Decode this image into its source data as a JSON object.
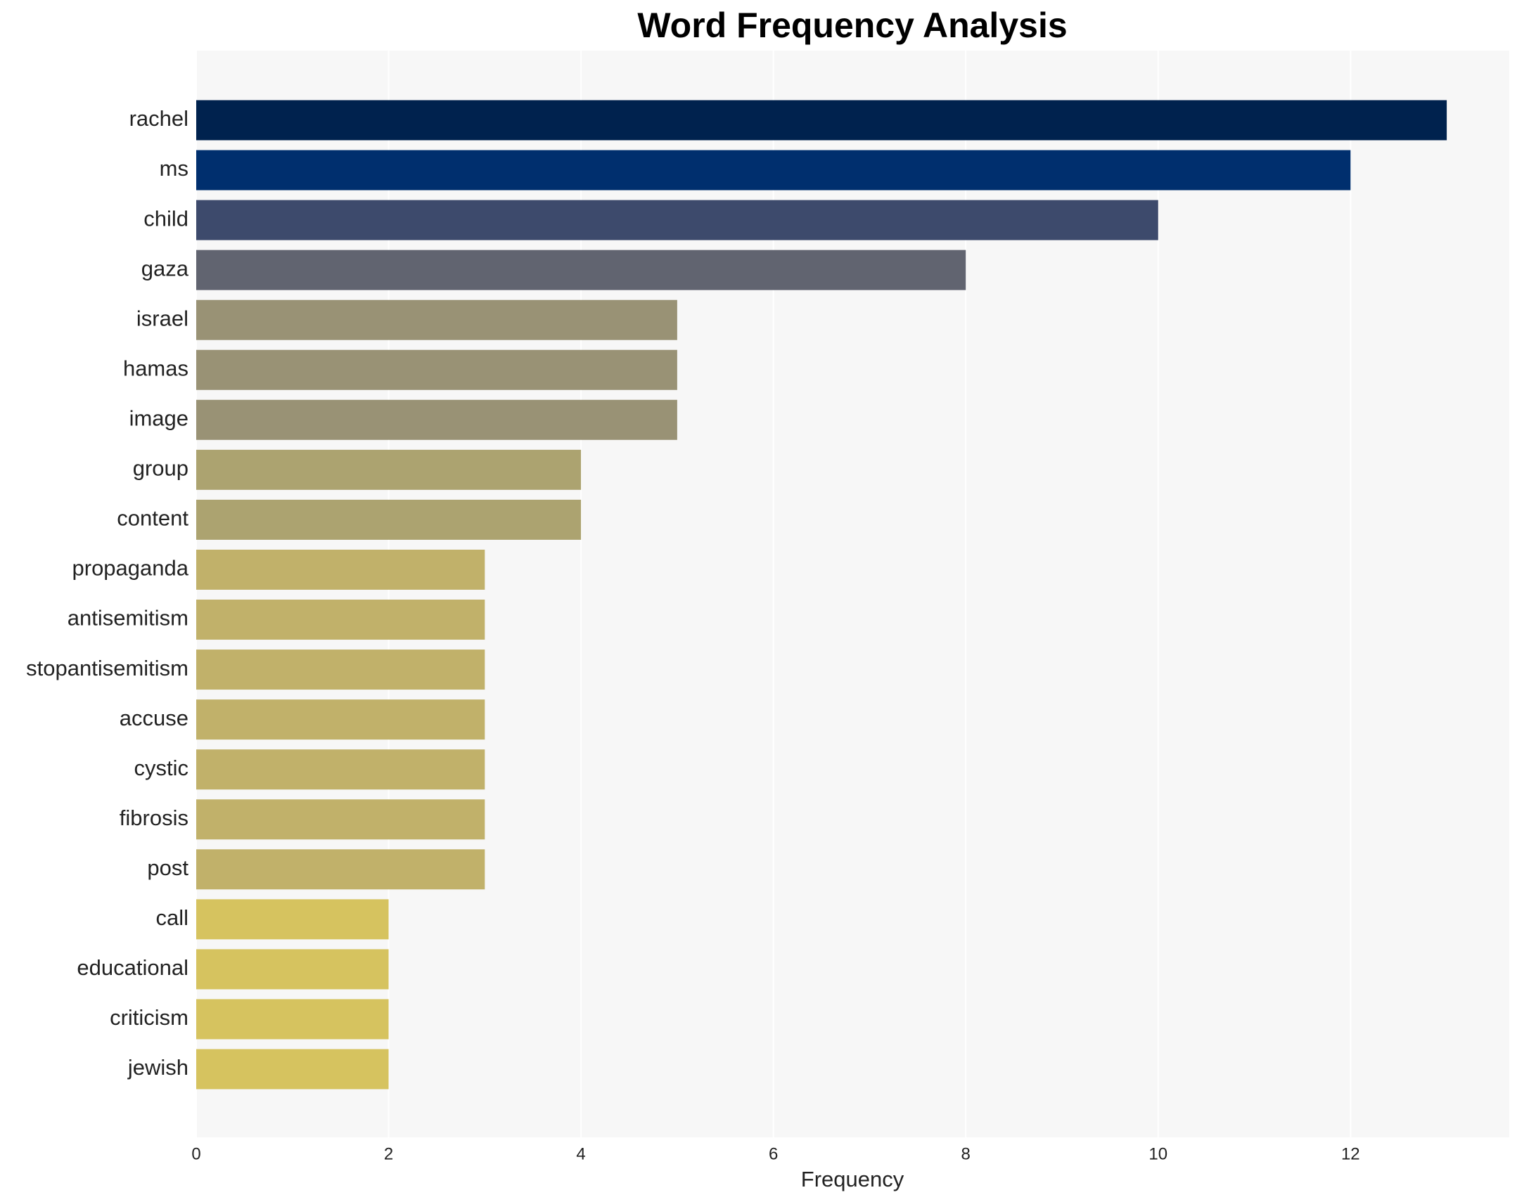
{
  "chart_data": {
    "type": "bar",
    "orientation": "horizontal",
    "title": "Word Frequency Analysis",
    "x_label": "Frequency",
    "categories": [
      "rachel",
      "ms",
      "child",
      "gaza",
      "israel",
      "hamas",
      "image",
      "group",
      "content",
      "propaganda",
      "antisemitism",
      "stopantisemitism",
      "accuse",
      "cystic",
      "fibrosis",
      "post",
      "call",
      "educational",
      "criticism",
      "jewish"
    ],
    "values": [
      13,
      12,
      10,
      8,
      5,
      5,
      5,
      4,
      4,
      3,
      3,
      3,
      3,
      3,
      3,
      3,
      2,
      2,
      2,
      2
    ],
    "colors": [
      "#00224e",
      "#002f6e",
      "#3d4a6c",
      "#616470",
      "#999275",
      "#999275",
      "#999275",
      "#aca370",
      "#aca370",
      "#c1b16a",
      "#c1b16a",
      "#c1b16a",
      "#c1b16a",
      "#c1b16a",
      "#c1b16a",
      "#c1b16a",
      "#d6c35f",
      "#d6c35f",
      "#d6c35f",
      "#d6c35f"
    ],
    "xlim": [
      0,
      13.65
    ],
    "xticks": [
      0,
      2,
      4,
      6,
      8,
      10,
      12
    ],
    "grid": true
  }
}
